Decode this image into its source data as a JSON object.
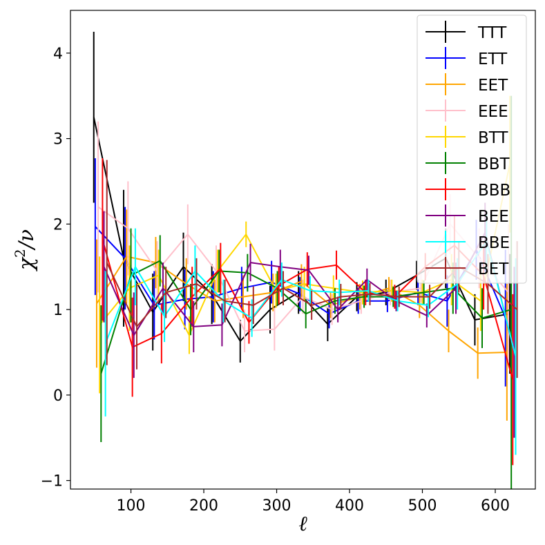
{
  "chart_data": {
    "type": "line",
    "title": "",
    "xlabel": "ℓ",
    "ylabel_base": "χ",
    "ylabel_sup": "2",
    "ylabel_tail": "/ν",
    "xlim": [
      17,
      655
    ],
    "ylim": [
      -1.1,
      4.5
    ],
    "xticks": [
      100,
      200,
      300,
      400,
      500,
      600
    ],
    "xtick_labels": [
      "100",
      "200",
      "300",
      "400",
      "500",
      "600"
    ],
    "yticks": [
      -1,
      0,
      1,
      2,
      3,
      4
    ],
    "ytick_labels": [
      "−1",
      "0",
      "1",
      "2",
      "3",
      "4"
    ],
    "legend_position": "top-right",
    "series": [
      {
        "name": "TTT",
        "color": "#000000",
        "x": [
          49,
          90,
          130,
          172,
          211,
          250,
          291,
          330,
          370,
          410,
          450,
          492,
          532,
          572,
          620
        ],
        "y": [
          3.25,
          1.6,
          0.97,
          1.5,
          1.18,
          0.63,
          1.0,
          1.2,
          0.83,
          1.15,
          1.2,
          1.4,
          1.6,
          0.88,
          0.95
        ],
        "err": [
          1.0,
          0.8,
          0.45,
          0.4,
          0.35,
          0.25,
          0.28,
          0.25,
          0.2,
          0.17,
          0.15,
          0.17,
          0.35,
          0.3,
          0.7
        ]
      },
      {
        "name": "ETT",
        "color": "#0000ff",
        "x": [
          51,
          92,
          132,
          174,
          213,
          252,
          293,
          332,
          372,
          412,
          452,
          494,
          534,
          574,
          614
        ],
        "y": [
          1.97,
          1.6,
          1.05,
          1.12,
          1.15,
          1.25,
          1.32,
          1.18,
          0.95,
          1.1,
          1.1,
          1.2,
          1.1,
          1.7,
          0.9
        ],
        "err": [
          0.8,
          0.6,
          0.4,
          0.35,
          0.3,
          0.25,
          0.25,
          0.2,
          0.17,
          0.15,
          0.13,
          0.15,
          0.3,
          0.35,
          0.8
        ]
      },
      {
        "name": "EET",
        "color": "#ffa500",
        "x": [
          53,
          94,
          134,
          176,
          215,
          254,
          295,
          334,
          374,
          414,
          454,
          496,
          536,
          576,
          616
        ],
        "y": [
          1.07,
          1.62,
          1.55,
          1.3,
          1.1,
          1.15,
          1.2,
          1.33,
          1.05,
          1.15,
          1.25,
          1.05,
          0.75,
          0.49,
          0.5
        ],
        "err": [
          0.75,
          0.55,
          0.3,
          0.3,
          0.25,
          0.25,
          0.22,
          0.2,
          0.15,
          0.15,
          0.13,
          0.15,
          0.25,
          0.3,
          0.8
        ]
      },
      {
        "name": "EEE",
        "color": "#ffc0cb",
        "x": [
          55,
          96,
          136,
          178,
          217,
          256,
          297,
          336,
          376,
          416,
          456,
          498,
          538,
          578,
          618
        ],
        "y": [
          2.2,
          1.95,
          1.45,
          1.88,
          1.45,
          0.75,
          0.77,
          1.15,
          1.0,
          1.1,
          1.2,
          1.25,
          2.0,
          1.6,
          1.2
        ],
        "err": [
          1.0,
          0.55,
          0.35,
          0.35,
          0.3,
          0.25,
          0.25,
          0.2,
          0.18,
          0.15,
          0.15,
          0.17,
          0.35,
          0.35,
          0.8
        ]
      },
      {
        "name": "BTT",
        "color": "#ffd700",
        "x": [
          57,
          98,
          138,
          180,
          219,
          258,
          299,
          338,
          378,
          418,
          458,
          500,
          540,
          580,
          620
        ],
        "y": [
          0.82,
          1.25,
          1.4,
          0.7,
          1.45,
          1.88,
          1.22,
          1.3,
          1.25,
          1.2,
          1.22,
          1.2,
          1.35,
          1.1,
          2.7
        ],
        "err": [
          0.8,
          0.5,
          0.3,
          0.22,
          0.25,
          0.15,
          0.2,
          0.2,
          0.15,
          0.14,
          0.13,
          0.15,
          0.3,
          0.35,
          0.8
        ]
      },
      {
        "name": "BBT",
        "color": "#008000",
        "x": [
          59,
          100,
          140,
          182,
          221,
          260,
          301,
          340,
          380,
          420,
          460,
          502,
          542,
          582,
          622
        ],
        "y": [
          0.25,
          1.4,
          1.57,
          1.0,
          1.45,
          1.43,
          1.25,
          0.95,
          1.1,
          1.15,
          1.15,
          1.2,
          1.25,
          0.9,
          1.0
        ],
        "err": [
          0.8,
          0.55,
          0.3,
          0.3,
          0.25,
          0.22,
          0.2,
          0.17,
          0.15,
          0.13,
          0.12,
          0.14,
          0.3,
          0.35,
          2.5
        ]
      },
      {
        "name": "BBB",
        "color": "#ff0000",
        "x": [
          61,
          102,
          142,
          184,
          223,
          262,
          303,
          342,
          382,
          422,
          462,
          504,
          544,
          584,
          624
        ],
        "y": [
          1.82,
          0.56,
          0.72,
          1.15,
          1.48,
          0.85,
          1.28,
          1.47,
          1.52,
          1.2,
          1.15,
          1.5,
          1.75,
          1.4,
          0.18
        ],
        "err": [
          0.95,
          0.58,
          0.35,
          0.35,
          0.3,
          0.25,
          0.22,
          0.2,
          0.17,
          0.15,
          0.14,
          0.16,
          0.35,
          0.4,
          1.0
        ]
      },
      {
        "name": "BEE",
        "color": "#800080",
        "x": [
          63,
          104,
          144,
          186,
          225,
          264,
          305,
          344,
          384,
          424,
          464,
          506,
          546,
          586,
          626
        ],
        "y": [
          1.5,
          0.7,
          1.25,
          0.8,
          0.82,
          1.55,
          1.5,
          1.46,
          1.0,
          1.35,
          1.1,
          0.93,
          1.25,
          1.9,
          0.5
        ],
        "err": [
          0.65,
          0.5,
          0.3,
          0.3,
          0.25,
          0.22,
          0.2,
          0.17,
          0.15,
          0.13,
          0.12,
          0.14,
          0.3,
          0.35,
          1.0
        ]
      },
      {
        "name": "BBE",
        "color": "#00ffff",
        "x": [
          65,
          106,
          146,
          188,
          227,
          266,
          307,
          346,
          386,
          426,
          466,
          508,
          548,
          588,
          628
        ],
        "y": [
          0.6,
          1.5,
          0.92,
          1.45,
          1.1,
          0.9,
          1.35,
          1.22,
          1.2,
          1.22,
          1.1,
          1.05,
          1.3,
          1.8,
          0.45
        ],
        "err": [
          0.85,
          0.45,
          0.3,
          0.3,
          0.25,
          0.22,
          0.2,
          0.17,
          0.15,
          0.13,
          0.12,
          0.14,
          0.3,
          0.35,
          1.15
        ]
      },
      {
        "name": "BET",
        "color": "#a52a2a",
        "x": [
          67,
          108,
          148,
          190,
          229,
          268,
          309,
          348,
          388,
          428,
          468,
          510,
          550,
          590,
          630
        ],
        "y": [
          1.55,
          0.8,
          1.2,
          1.3,
          1.1,
          1.05,
          1.25,
          1.05,
          1.15,
          1.18,
          1.15,
          1.15,
          1.5,
          1.3,
          1.0
        ],
        "err": [
          1.2,
          0.5,
          0.3,
          0.3,
          0.25,
          0.22,
          0.2,
          0.17,
          0.15,
          0.13,
          0.12,
          0.14,
          0.3,
          0.35,
          0.8
        ]
      }
    ]
  }
}
